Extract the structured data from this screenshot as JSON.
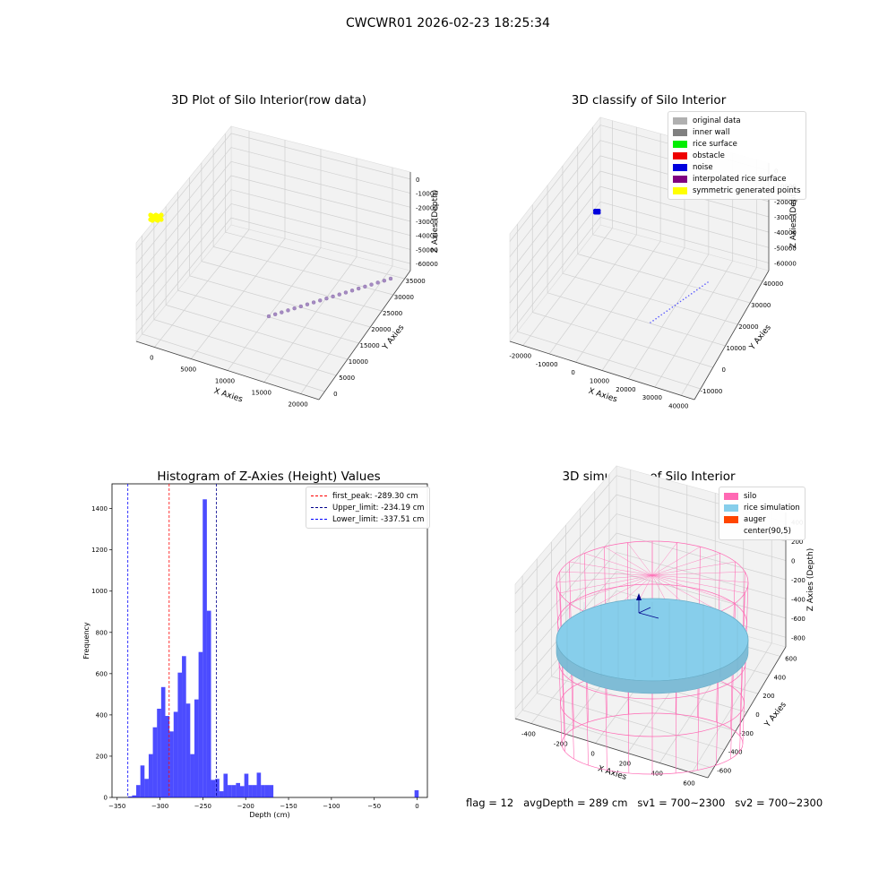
{
  "figure": {
    "suptitle": "CWCWR01 2026-02-23 18:25:34",
    "footer": "flag = 12   avgDepth = 289 cm   sv1 = 700~2300   sv2 = 700~2300"
  },
  "chart_data": [
    {
      "type": "scatter",
      "projection": "3d",
      "title": "3D Plot of Silo Interior(row data)",
      "xlabel": "X Axies",
      "ylabel": "Y Axies",
      "zlabel": "Z Axies (Depth)",
      "xticks": [
        "0",
        "5000",
        "10000",
        "15000",
        "20000"
      ],
      "yticks": [
        "0",
        "5000",
        "10000",
        "15000",
        "20000",
        "25000",
        "30000",
        "35000"
      ],
      "zticks": [
        "0",
        "-10000",
        "-20000",
        "-30000",
        "-40000",
        "-50000",
        "-60000"
      ],
      "xlim": [
        -2000,
        21000
      ],
      "ylim": [
        -1000,
        37000
      ],
      "zlim": [
        -63000,
        2000
      ],
      "grid": true,
      "series": [
        {
          "x": [
            3000
          ],
          "y": [
            0
          ],
          "z": [
            -62000
          ],
          "color": "#ffff00"
        },
        {
          "x": [
            20500,
            20300,
            20100,
            19900,
            19700,
            19500,
            19300,
            19100,
            18900,
            18700,
            18500,
            18300,
            18100,
            17900,
            17700,
            17500,
            17300,
            17100,
            16900,
            16700
          ],
          "y": [
            36000,
            34200,
            32400,
            30600,
            28800,
            27000,
            25200,
            23400,
            21600,
            19800,
            18000,
            16200,
            14400,
            12600,
            10800,
            9000,
            7200,
            5400,
            3600,
            1800
          ],
          "z": [
            -20,
            -20,
            -20,
            -20,
            -20,
            -20,
            -20,
            -20,
            -20,
            -20,
            -20,
            -20,
            -20,
            -20,
            -20,
            -20,
            -20,
            -20,
            -20,
            -20
          ],
          "color": "#a58ac2"
        }
      ]
    },
    {
      "type": "scatter",
      "projection": "3d",
      "title": "3D classify of Silo Interior",
      "xlabel": "X Axies",
      "ylabel": "Y Axies",
      "zlabel": "Z Axies (Depth)",
      "xticks": [
        "-20000",
        "-10000",
        "0",
        "10000",
        "20000",
        "30000",
        "40000"
      ],
      "yticks": [
        "-10000",
        "0",
        "10000",
        "20000",
        "30000",
        "40000"
      ],
      "zticks": [
        "0",
        "-10000",
        "-20000",
        "-30000",
        "-40000",
        "-50000",
        "-60000"
      ],
      "grid": true,
      "legend": [
        {
          "label": "original data",
          "color": "#b0b0b0"
        },
        {
          "label": "inner wall",
          "color": "#808080"
        },
        {
          "label": "rice surface",
          "color": "#00ee00"
        },
        {
          "label": "obstacle",
          "color": "#ee0000"
        },
        {
          "label": "noise",
          "color": "#0000dd"
        },
        {
          "label": "interpolated rice surface",
          "color": "#800080"
        },
        {
          "label": "symmetric generated points",
          "color": "#ffff00"
        }
      ],
      "legend_position": "top-right"
    },
    {
      "type": "bar",
      "title": "Histogram of Z-Axies (Height) Values",
      "xlabel": "Depth (cm)",
      "ylabel": "Frequency",
      "xlim": [
        -356,
        12
      ],
      "ylim": [
        0,
        1520
      ],
      "xticks": [
        -350,
        -300,
        -250,
        -200,
        -150,
        -100,
        -50,
        0
      ],
      "yticks": [
        0,
        200,
        400,
        600,
        800,
        1000,
        1200,
        1400
      ],
      "bin_width": 4.85,
      "bins_start": [
        -342.3,
        -337.45,
        -332.6,
        -327.75,
        -322.9,
        -318.05,
        -313.2,
        -308.35,
        -303.5,
        -298.65,
        -293.8,
        -288.95,
        -284.1,
        -279.25,
        -274.4,
        -269.55,
        -264.7,
        -259.85,
        -255.0,
        -250.15,
        -245.3,
        -240.45,
        -235.6,
        -230.75,
        -225.9,
        -221.05,
        -216.2,
        -211.35,
        -206.5,
        -201.65,
        -196.8,
        -191.95,
        -187.1,
        -182.25,
        -177.4,
        -172.55,
        -167.7,
        -162.85,
        -158.0,
        -153.15,
        -148.3,
        -143.45,
        -138.6,
        -133.75,
        -128.9,
        -124.05,
        -119.2,
        -114.35,
        -109.5,
        -3.0
      ],
      "values": [
        0,
        5,
        10,
        60,
        155,
        90,
        210,
        340,
        430,
        535,
        395,
        320,
        415,
        605,
        685,
        455,
        210,
        475,
        705,
        1445,
        905,
        85,
        90,
        30,
        115,
        60,
        60,
        70,
        55,
        115,
        60,
        60,
        120,
        60,
        60,
        60,
        0,
        0,
        0,
        0,
        0,
        0,
        0,
        0,
        0,
        0,
        0,
        0,
        0,
        35
      ],
      "bar_color": "#0000ff",
      "vlines": [
        {
          "label": "first_peak: -289.30 cm",
          "x": -289.3,
          "color": "#ff0000"
        },
        {
          "label": "Upper_limit: -234.19 cm",
          "x": -234.19,
          "color": "#00008b"
        },
        {
          "label": "Lower_limit: -337.51 cm",
          "x": -337.51,
          "color": "#0000ff"
        }
      ],
      "legend_position": "top-right"
    },
    {
      "type": "surface",
      "projection": "3d",
      "title": "3D simulation of Silo Interior",
      "xlabel": "X Axies",
      "ylabel": "Y Axies",
      "zlabel": "Z Axies (Depth)",
      "xticks": [
        "-400",
        "-200",
        "0",
        "200",
        "400",
        "600"
      ],
      "yticks": [
        "-600",
        "-400",
        "-200",
        "0",
        "200",
        "400",
        "600"
      ],
      "zticks": [
        "400",
        "200",
        "0",
        "-200",
        "-400",
        "-600",
        "-800"
      ],
      "grid": true,
      "legend": [
        {
          "label": "silo",
          "color": "#ff69b4"
        },
        {
          "label": "rice simulation",
          "color": "#87ceeb"
        },
        {
          "label": "auger",
          "color": "#ff4500"
        },
        {
          "label": "center(90,5)",
          "color": ""
        }
      ],
      "legend_position": "top-right",
      "silo_color": "#ff69b4",
      "rice_color": "#87ceeb"
    }
  ]
}
